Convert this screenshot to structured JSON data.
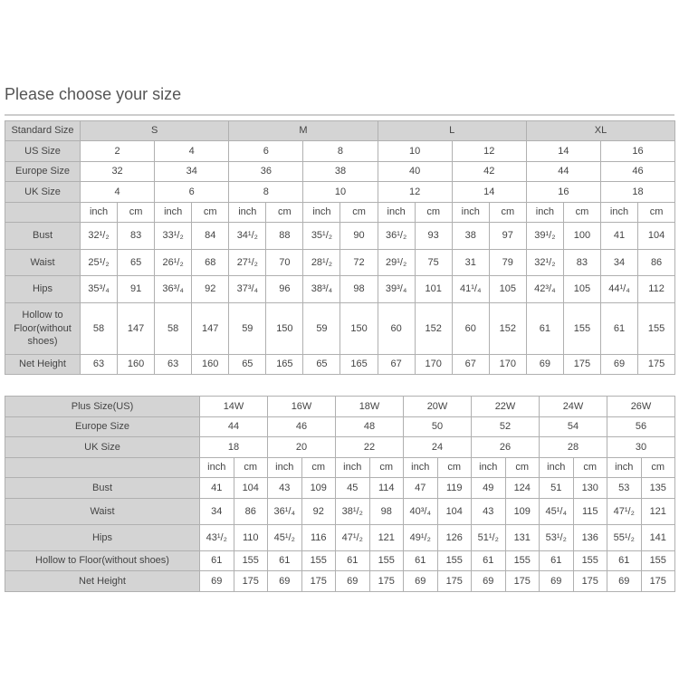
{
  "title": "Please choose your size",
  "standard_table": {
    "header_label": "Standard Size",
    "groups": [
      "S",
      "M",
      "L",
      "XL"
    ],
    "us_label": "US Size",
    "us": [
      "2",
      "4",
      "6",
      "8",
      "10",
      "12",
      "14",
      "16"
    ],
    "europe_label": "Europe Size",
    "europe": [
      "32",
      "34",
      "36",
      "38",
      "40",
      "42",
      "44",
      "46"
    ],
    "uk_label": "UK Size",
    "uk": [
      "4",
      "6",
      "8",
      "10",
      "12",
      "14",
      "16",
      "18"
    ],
    "units": [
      "inch",
      "cm"
    ],
    "rows": [
      {
        "label": "Bust",
        "values": [
          "32¹/₂",
          "83",
          "33¹/₂",
          "84",
          "34¹/₂",
          "88",
          "35¹/₂",
          "90",
          "36¹/₂",
          "93",
          "38",
          "97",
          "39¹/₂",
          "100",
          "41",
          "104"
        ]
      },
      {
        "label": "Waist",
        "values": [
          "25¹/₂",
          "65",
          "26¹/₂",
          "68",
          "27¹/₂",
          "70",
          "28¹/₂",
          "72",
          "29¹/₂",
          "75",
          "31",
          "79",
          "32¹/₂",
          "83",
          "34",
          "86"
        ]
      },
      {
        "label": "Hips",
        "values": [
          "35³/₄",
          "91",
          "36³/₄",
          "92",
          "37³/₄",
          "96",
          "38³/₄",
          "98",
          "39³/₄",
          "101",
          "41¹/₄",
          "105",
          "42³/₄",
          "105",
          "44¹/₄",
          "112"
        ]
      },
      {
        "label": "Hollow to Floor(without shoes)",
        "values": [
          "58",
          "147",
          "58",
          "147",
          "59",
          "150",
          "59",
          "150",
          "60",
          "152",
          "60",
          "152",
          "61",
          "155",
          "61",
          "155"
        ]
      },
      {
        "label": "Net Height",
        "values": [
          "63",
          "160",
          "63",
          "160",
          "65",
          "165",
          "65",
          "165",
          "67",
          "170",
          "67",
          "170",
          "69",
          "175",
          "69",
          "175"
        ]
      }
    ]
  },
  "plus_table": {
    "header_label": "Plus Size(US)",
    "us": [
      "14W",
      "16W",
      "18W",
      "20W",
      "22W",
      "24W",
      "26W"
    ],
    "europe_label": "Europe Size",
    "europe": [
      "44",
      "46",
      "48",
      "50",
      "52",
      "54",
      "56"
    ],
    "uk_label": "UK Size",
    "uk": [
      "18",
      "20",
      "22",
      "24",
      "26",
      "28",
      "30"
    ],
    "units": [
      "inch",
      "cm"
    ],
    "rows": [
      {
        "label": "Bust",
        "values": [
          "41",
          "104",
          "43",
          "109",
          "45",
          "114",
          "47",
          "119",
          "49",
          "124",
          "51",
          "130",
          "53",
          "135"
        ]
      },
      {
        "label": "Waist",
        "values": [
          "34",
          "86",
          "36¹/₄",
          "92",
          "38¹/₂",
          "98",
          "40³/₄",
          "104",
          "43",
          "109",
          "45¹/₄",
          "115",
          "47¹/₂",
          "121"
        ]
      },
      {
        "label": "Hips",
        "values": [
          "43¹/₂",
          "110",
          "45¹/₂",
          "116",
          "47¹/₂",
          "121",
          "49¹/₂",
          "126",
          "51¹/₂",
          "131",
          "53¹/₂",
          "136",
          "55¹/₂",
          "141"
        ]
      },
      {
        "label": "Hollow to Floor(without shoes)",
        "values": [
          "61",
          "155",
          "61",
          "155",
          "61",
          "155",
          "61",
          "155",
          "61",
          "155",
          "61",
          "155",
          "61",
          "155"
        ]
      },
      {
        "label": "Net Height",
        "values": [
          "69",
          "175",
          "69",
          "175",
          "69",
          "175",
          "69",
          "175",
          "69",
          "175",
          "69",
          "175",
          "69",
          "175"
        ]
      }
    ]
  }
}
